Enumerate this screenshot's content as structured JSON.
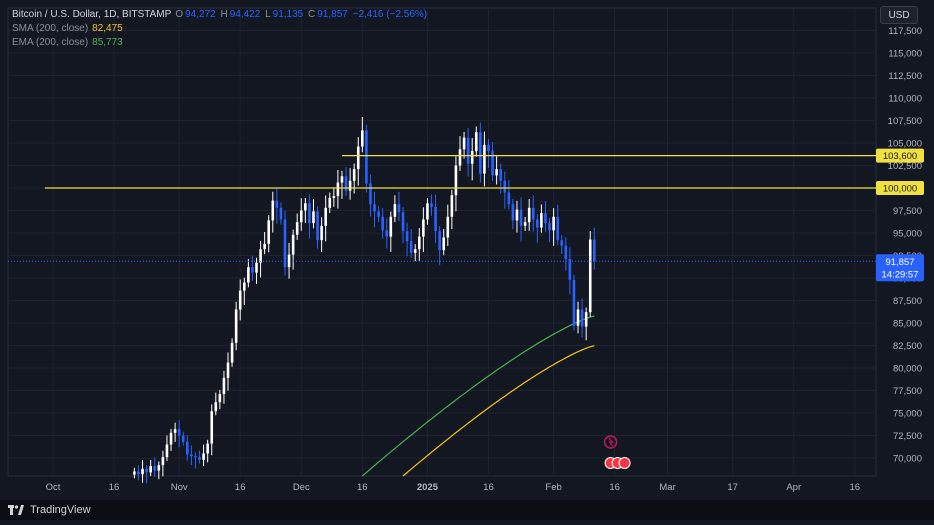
{
  "legend": {
    "symbol": "Bitcoin / U.S. Dollar, 1D, BITSTAMP",
    "o_label": "O",
    "o_value": "94,272",
    "h_label": "H",
    "h_value": "94,422",
    "l_label": "L",
    "l_value": "91,135",
    "c_label": "C",
    "c_value": "91,857",
    "change": "−2,416 (−2.56%)",
    "sma_label": "SMA (200, close)",
    "sma_value": "82,475",
    "ema_label": "EMA (200, close)",
    "ema_value": "85,773"
  },
  "currency_button": "USD",
  "brand": "TradingView",
  "colors": {
    "background": "#131722",
    "grid": "#1e2230",
    "up": "#ffffff",
    "down": "#2962ff",
    "sma": "#f0c419",
    "ema": "#4caf50",
    "level_line": "#f0e040",
    "price_label_bg": "#2962ff",
    "level_label_bg": "#f0e040"
  },
  "chart_data": {
    "type": "candlestick",
    "title": "Bitcoin / U.S. Dollar, 1D, BITSTAMP",
    "ylim": [
      68000,
      120000
    ],
    "y_ticks": [
      70000,
      72500,
      75000,
      77500,
      80000,
      82500,
      85000,
      87500,
      90000,
      92500,
      95000,
      97500,
      100000,
      102500,
      105000,
      107500,
      110000,
      112500,
      115000,
      117500
    ],
    "y_tick_labels": [
      "70,000",
      "72,500",
      "75,000",
      "77,500",
      "80,000",
      "82,500",
      "85,000",
      "87,500",
      "90,000",
      "92,500",
      "95,000",
      "97,500",
      "100,000",
      "102,500",
      "105,000",
      "107,500",
      "110,000",
      "112,500",
      "115,000",
      "117,500"
    ],
    "x_labels": [
      "Oct",
      "16",
      "Nov",
      "16",
      "Dec",
      "16",
      "2025",
      "16",
      "Feb",
      "16",
      "Mar",
      "17",
      "Apr",
      "16"
    ],
    "x_label_days": [
      0,
      15,
      31,
      46,
      61,
      76,
      92,
      107,
      123,
      138,
      151,
      167,
      182,
      197
    ],
    "levels": [
      {
        "value": 103600,
        "label": "103,600",
        "start_day": 71
      },
      {
        "value": 100000,
        "label": "100,000",
        "start_day": -2
      }
    ],
    "current_price": {
      "value": 91857,
      "label": "91,857",
      "countdown": "14:29:57"
    },
    "candle_start_day": 20,
    "closes": [
      68500,
      68200,
      68800,
      68400,
      69100,
      68600,
      69200,
      70100,
      71500,
      72800,
      73200,
      72500,
      71800,
      70400,
      70200,
      70100,
      69800,
      70500,
      71600,
      75200,
      76200,
      77100,
      78900,
      80600,
      82800,
      86500,
      88600,
      89500,
      91200,
      90600,
      91700,
      93200,
      93800,
      96400,
      98600,
      97800,
      96500,
      91200,
      92600,
      94800,
      96200,
      97500,
      98300,
      96100,
      97400,
      94200,
      95800,
      97800,
      98900,
      99100,
      100600,
      101300,
      99700,
      100800,
      102100,
      104600,
      106400,
      100500,
      98200,
      97400,
      96800,
      95300,
      94600,
      96800,
      98200,
      97300,
      95200,
      94100,
      92800,
      93200,
      94600,
      96500,
      98300,
      97900,
      95200,
      93100,
      94500,
      96800,
      99200,
      102500,
      104300,
      105600,
      102700,
      104100,
      106200,
      101600,
      104800,
      104100,
      101400,
      102100,
      100800,
      99500,
      98200,
      96400,
      97600,
      95800,
      96200,
      97800,
      96500,
      95600,
      97200,
      96100,
      95300,
      96800,
      94200,
      93600,
      92100,
      89800,
      84700,
      86500,
      84600,
      86200,
      94272,
      91857
    ],
    "sma_start_day": 86,
    "sma_start": 68000,
    "sma_end": 82475,
    "ema_start_day": 76,
    "ema_start": 68000,
    "ema_end": 85773
  }
}
